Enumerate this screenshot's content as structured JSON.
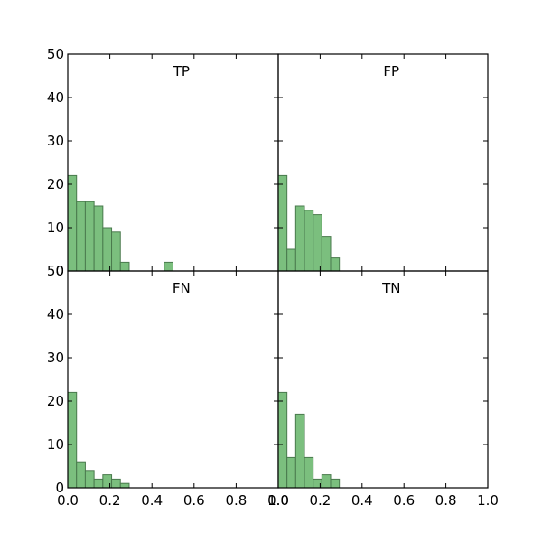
{
  "chart_data": {
    "type": "bar",
    "layout": "2x2 grid of histograms",
    "bar_color": "#7bbf7e",
    "bar_edge_color": "#4a7a4d",
    "bin_width": 0.0417,
    "xlim": [
      0.0,
      1.0
    ],
    "ylim": [
      0,
      50
    ],
    "xticks": [
      0.0,
      0.2,
      0.4,
      0.6,
      0.8,
      1.0
    ],
    "xtick_labels": [
      "0.0",
      "0.2",
      "0.4",
      "0.6",
      "0.8",
      "1.0"
    ],
    "yticks": [
      0,
      10,
      20,
      30,
      40,
      50
    ],
    "ytick_labels": [
      "0",
      "10",
      "20",
      "30",
      "40",
      "50"
    ],
    "panels": [
      {
        "title": "TP",
        "bin_starts": [
          0.0,
          0.0417,
          0.0833,
          0.125,
          0.1667,
          0.2083,
          0.25,
          0.2917,
          0.3333,
          0.375,
          0.4167,
          0.4583
        ],
        "values": [
          22,
          16,
          16,
          15,
          10,
          9,
          2,
          0,
          0,
          0,
          0,
          2
        ]
      },
      {
        "title": "FP",
        "bin_starts": [
          0.0,
          0.0417,
          0.0833,
          0.125,
          0.1667,
          0.2083,
          0.25,
          0.2917
        ],
        "values": [
          22,
          5,
          15,
          14,
          13,
          8,
          3,
          0
        ]
      },
      {
        "title": "FN",
        "bin_starts": [
          0.0,
          0.0417,
          0.0833,
          0.125,
          0.1667,
          0.2083,
          0.25,
          0.2917
        ],
        "values": [
          22,
          6,
          4,
          2,
          3,
          2,
          1,
          0
        ]
      },
      {
        "title": "TN",
        "bin_starts": [
          0.0,
          0.0417,
          0.0833,
          0.125,
          0.1667,
          0.2083,
          0.25,
          0.2917
        ],
        "values": [
          22,
          7,
          17,
          7,
          2,
          3,
          2,
          0
        ]
      }
    ]
  }
}
